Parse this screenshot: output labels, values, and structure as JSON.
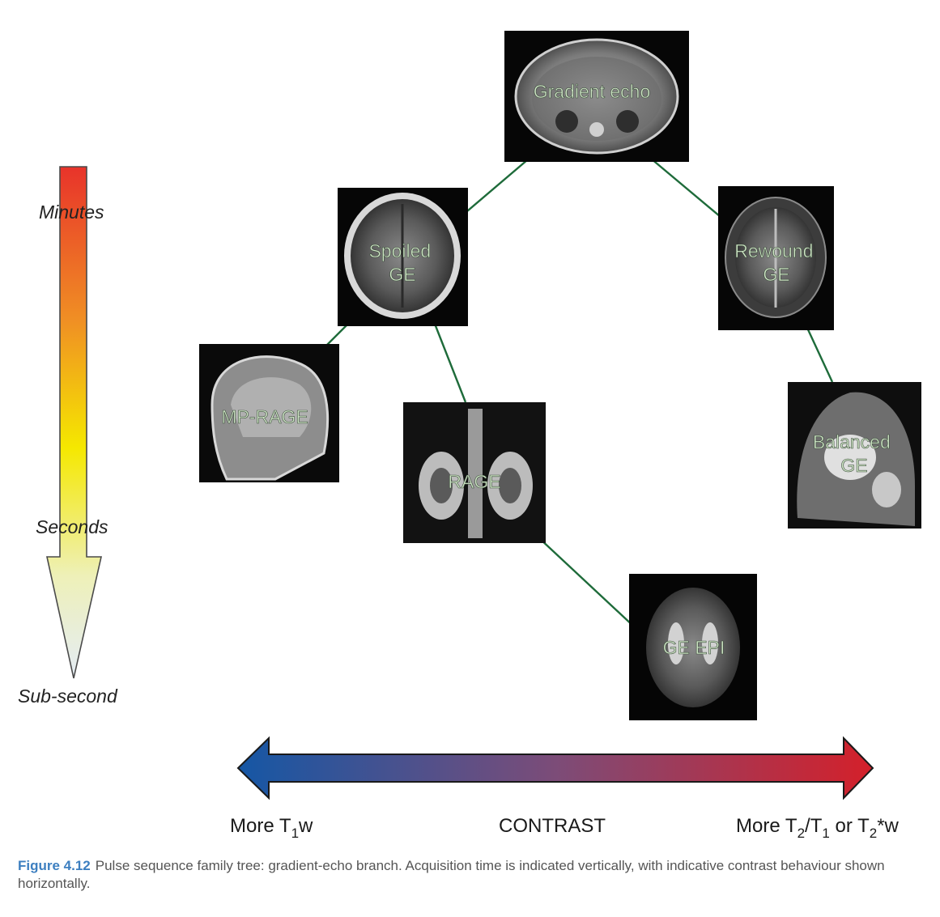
{
  "nodes": [
    {
      "id": "gradient-echo",
      "lines": [
        "Gradient echo"
      ]
    },
    {
      "id": "spoiled-ge",
      "lines": [
        "Spoiled",
        "GE"
      ]
    },
    {
      "id": "rewound-ge",
      "lines": [
        "Rewound",
        "GE"
      ]
    },
    {
      "id": "mp-rage",
      "lines": [
        "MP-RAGE"
      ]
    },
    {
      "id": "rage",
      "lines": [
        "RAGE"
      ]
    },
    {
      "id": "balanced-ge",
      "lines": [
        "Balanced",
        "GE"
      ]
    },
    {
      "id": "ge-epi",
      "lines": [
        "GE EPI"
      ]
    }
  ],
  "edges": [
    [
      "gradient-echo",
      "spoiled-ge"
    ],
    [
      "gradient-echo",
      "rewound-ge"
    ],
    [
      "spoiled-ge",
      "mp-rage"
    ],
    [
      "spoiled-ge",
      "rage"
    ],
    [
      "rage",
      "ge-epi"
    ],
    [
      "rewound-ge",
      "balanced-ge"
    ]
  ],
  "time_axis": {
    "labels": {
      "minutes": "Minutes",
      "seconds": "Seconds",
      "subsecond": "Sub-second"
    },
    "colors": [
      "#e8332a",
      "#f08f24",
      "#f5e800",
      "#eef0b8",
      "#e4ecf5"
    ]
  },
  "contrast_axis": {
    "left_label_parts": [
      "More T",
      "1",
      "w"
    ],
    "center_label": "CONTRAST",
    "right_label_parts": [
      "More T",
      "2",
      "/T",
      "1",
      " or T",
      "2",
      "*w"
    ],
    "colors": [
      "#1557a5",
      "#7c4c78",
      "#d4202a"
    ]
  },
  "caption": {
    "figure_label": "Figure 4.12",
    "text": "Pulse sequence family tree: gradient-echo branch. Acquisition time is indicated vertically, with indicative contrast behaviour shown horizontally."
  }
}
